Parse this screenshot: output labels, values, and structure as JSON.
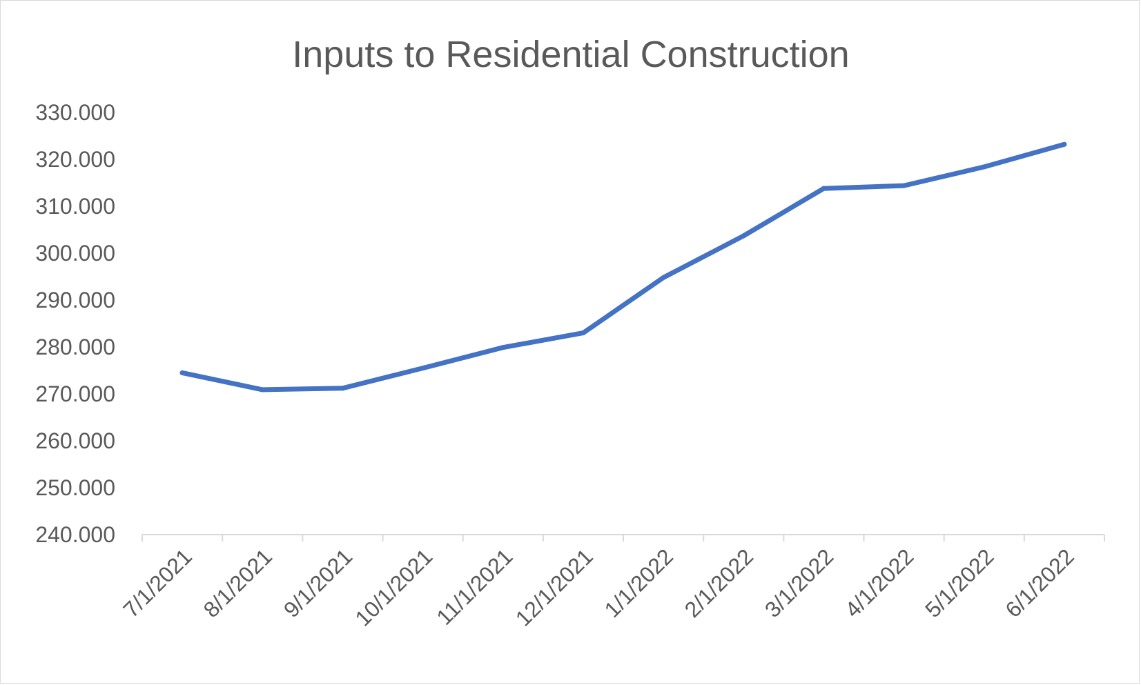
{
  "chart_data": {
    "type": "line",
    "title": "Inputs to Residential Construction",
    "xlabel": "",
    "ylabel": "",
    "categories": [
      "7/1/2021",
      "8/1/2021",
      "9/1/2021",
      "10/1/2021",
      "11/1/2021",
      "12/1/2021",
      "1/1/2022",
      "2/1/2022",
      "3/1/2022",
      "4/1/2022",
      "5/1/2022",
      "6/1/2022"
    ],
    "series": [
      {
        "values": [
          274.5,
          270.9,
          271.2,
          275.5,
          279.9,
          283.0,
          294.8,
          303.7,
          313.8,
          314.4,
          318.4,
          323.2
        ],
        "color": "#4472c4"
      }
    ],
    "ylim": [
      240,
      330
    ],
    "yticks": [
      "240.000",
      "250.000",
      "260.000",
      "270.000",
      "280.000",
      "290.000",
      "300.000",
      "310.000",
      "320.000",
      "330.000"
    ],
    "grid": false,
    "legend": "none"
  }
}
